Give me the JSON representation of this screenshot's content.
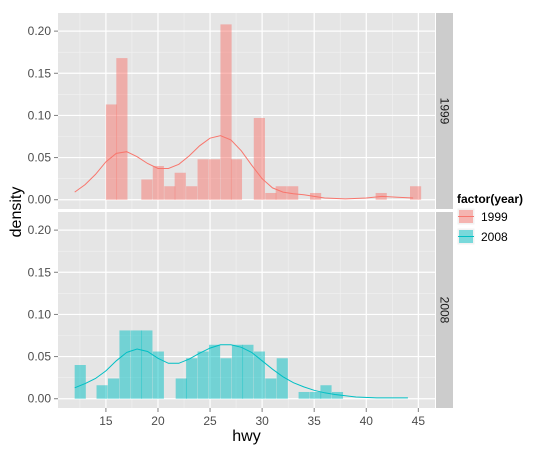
{
  "chart_data": {
    "type": "histogram-density-faceted",
    "xlabel": "hwy",
    "ylabel": "density",
    "x_ticks": [
      15,
      20,
      25,
      30,
      35,
      40,
      45
    ],
    "x_tick_labels": [
      "15",
      "20",
      "25",
      "30",
      "35",
      "40",
      "45"
    ],
    "xlim": [
      10.4,
      46.6
    ],
    "y_ticks": [
      0.0,
      0.05,
      0.1,
      0.15,
      0.2
    ],
    "y_tick_labels": [
      "0.00",
      "0.05",
      "0.10",
      "0.15",
      "0.20"
    ],
    "ylim": [
      -0.011,
      0.2215
    ],
    "bin_width": 1.07,
    "grid": true,
    "legend": {
      "title": "factor(year)",
      "placement": "right",
      "entries": [
        {
          "label": "1999",
          "color": "#F8766D"
        },
        {
          "label": "2008",
          "color": "#00BFC4"
        }
      ]
    },
    "panels": [
      {
        "strip": "1999",
        "color": "#F8766D",
        "bins": [
          [
            15.0,
            0.113
          ],
          [
            16.0,
            0.168
          ],
          [
            18.4,
            0.024
          ],
          [
            19.5,
            0.04
          ],
          [
            20.6,
            0.016
          ],
          [
            21.6,
            0.032
          ],
          [
            22.7,
            0.016
          ],
          [
            23.8,
            0.048
          ],
          [
            24.9,
            0.048
          ],
          [
            26.0,
            0.208
          ],
          [
            27.0,
            0.048
          ],
          [
            29.2,
            0.097
          ],
          [
            30.3,
            0.008
          ],
          [
            31.3,
            0.016
          ],
          [
            32.4,
            0.016
          ],
          [
            34.6,
            0.008
          ],
          [
            40.9,
            0.008
          ],
          [
            44.2,
            0.016
          ]
        ],
        "density": [
          [
            12.0,
            0.009
          ],
          [
            13.0,
            0.018
          ],
          [
            14.0,
            0.03
          ],
          [
            15.0,
            0.045
          ],
          [
            16.0,
            0.055
          ],
          [
            17.0,
            0.057
          ],
          [
            18.0,
            0.051
          ],
          [
            19.0,
            0.043
          ],
          [
            20.0,
            0.037
          ],
          [
            21.0,
            0.037
          ],
          [
            22.0,
            0.042
          ],
          [
            23.0,
            0.052
          ],
          [
            24.0,
            0.064
          ],
          [
            25.0,
            0.073
          ],
          [
            26.0,
            0.076
          ],
          [
            27.0,
            0.071
          ],
          [
            28.0,
            0.058
          ],
          [
            29.0,
            0.041
          ],
          [
            30.0,
            0.025
          ],
          [
            31.0,
            0.014
          ],
          [
            32.0,
            0.009
          ],
          [
            33.0,
            0.007
          ],
          [
            34.0,
            0.006
          ],
          [
            35.0,
            0.004
          ],
          [
            36.0,
            0.002
          ],
          [
            38.0,
            0.001
          ],
          [
            40.0,
            0.002
          ],
          [
            41.5,
            0.004
          ],
          [
            43.0,
            0.003
          ],
          [
            44.5,
            0.002
          ]
        ]
      },
      {
        "strip": "2008",
        "color": "#00BFC4",
        "bins": [
          [
            12.0,
            0.04
          ],
          [
            14.1,
            0.016
          ],
          [
            15.2,
            0.024
          ],
          [
            16.3,
            0.081
          ],
          [
            17.4,
            0.081
          ],
          [
            18.4,
            0.081
          ],
          [
            19.5,
            0.056
          ],
          [
            21.7,
            0.024
          ],
          [
            22.7,
            0.048
          ],
          [
            23.8,
            0.056
          ],
          [
            24.9,
            0.064
          ],
          [
            26.0,
            0.048
          ],
          [
            27.1,
            0.064
          ],
          [
            28.1,
            0.064
          ],
          [
            29.2,
            0.056
          ],
          [
            30.3,
            0.024
          ],
          [
            31.4,
            0.048
          ],
          [
            33.5,
            0.008
          ],
          [
            34.6,
            0.008
          ],
          [
            35.6,
            0.016
          ],
          [
            36.7,
            0.008
          ]
        ],
        "density": [
          [
            12.0,
            0.013
          ],
          [
            13.0,
            0.018
          ],
          [
            14.0,
            0.024
          ],
          [
            15.0,
            0.033
          ],
          [
            16.0,
            0.045
          ],
          [
            17.0,
            0.055
          ],
          [
            18.0,
            0.059
          ],
          [
            19.0,
            0.056
          ],
          [
            20.0,
            0.048
          ],
          [
            21.0,
            0.042
          ],
          [
            22.0,
            0.042
          ],
          [
            23.0,
            0.047
          ],
          [
            24.0,
            0.054
          ],
          [
            25.0,
            0.06
          ],
          [
            26.0,
            0.064
          ],
          [
            27.0,
            0.064
          ],
          [
            28.0,
            0.061
          ],
          [
            29.0,
            0.055
          ],
          [
            30.0,
            0.045
          ],
          [
            31.0,
            0.035
          ],
          [
            32.0,
            0.026
          ],
          [
            33.0,
            0.019
          ],
          [
            34.0,
            0.014
          ],
          [
            35.0,
            0.01
          ],
          [
            36.0,
            0.007
          ],
          [
            37.0,
            0.005
          ],
          [
            39.0,
            0.002
          ],
          [
            41.0,
            0.001
          ],
          [
            44.0,
            0.001
          ]
        ]
      }
    ]
  }
}
